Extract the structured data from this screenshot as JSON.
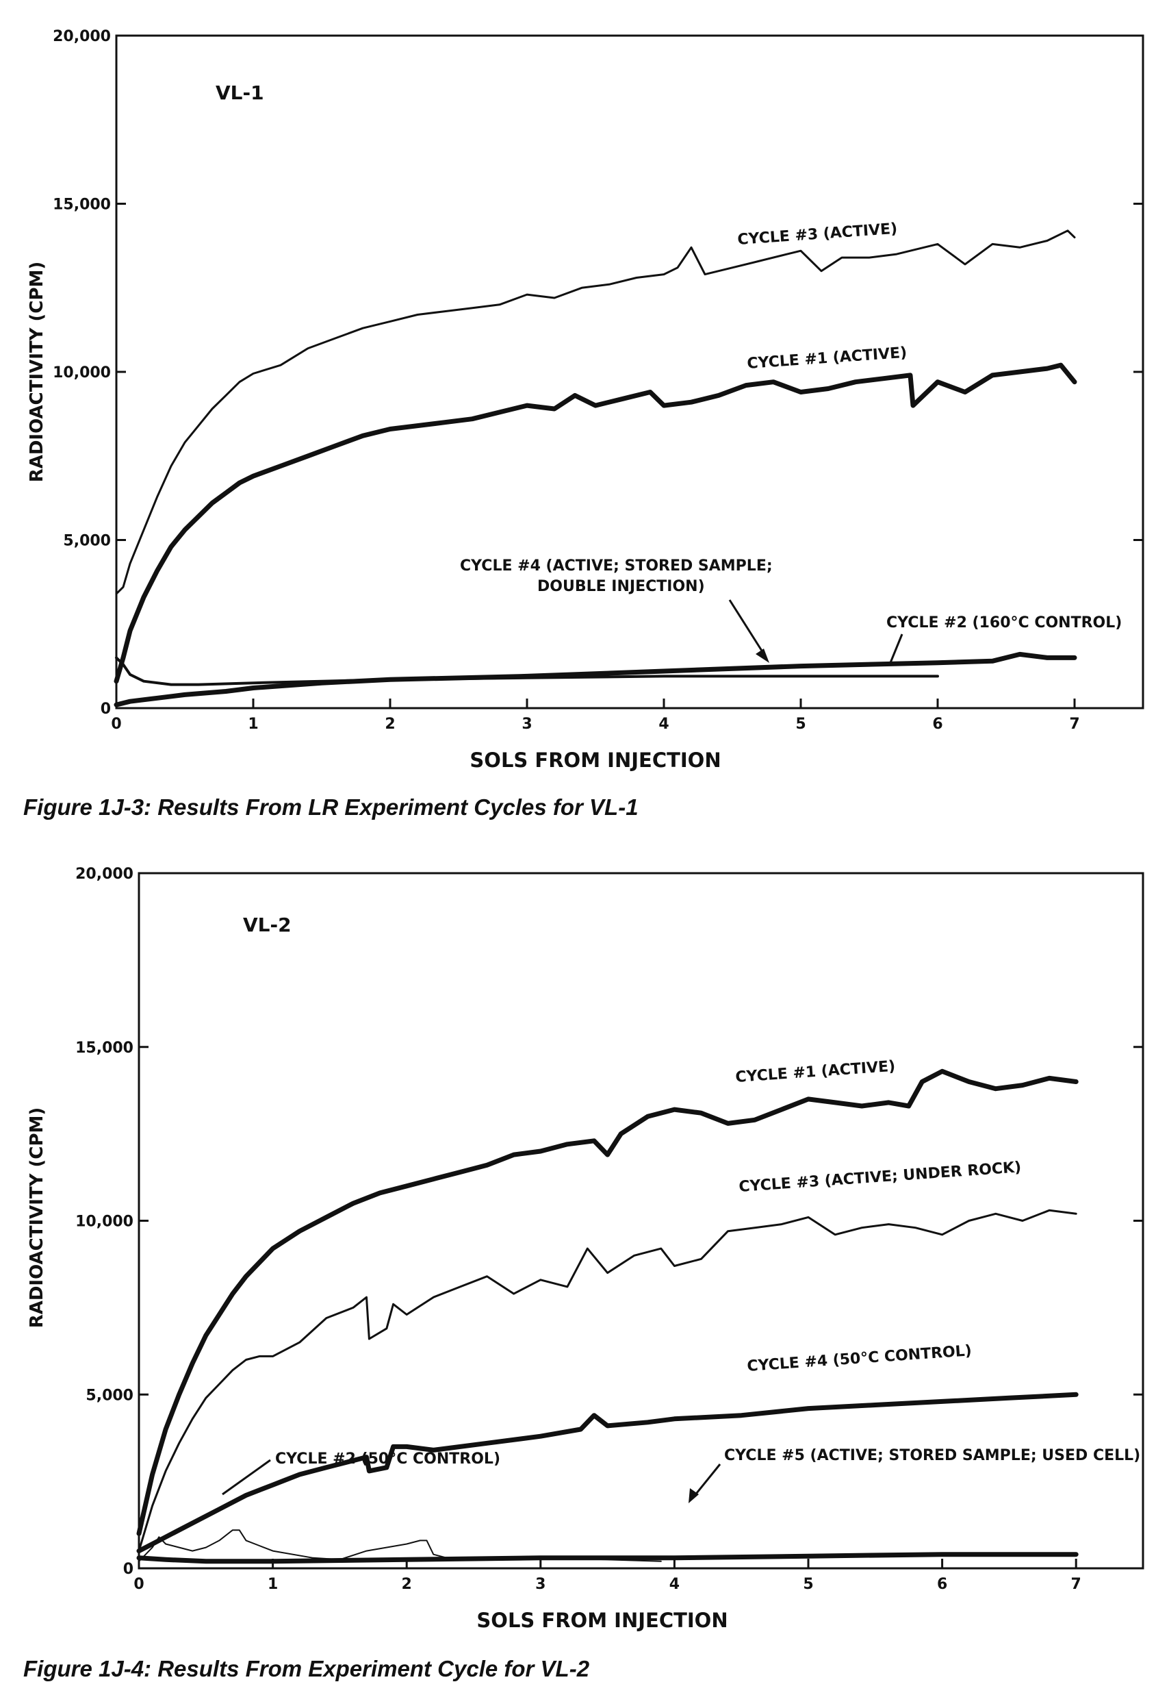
{
  "chart_data": [
    {
      "type": "line",
      "panel_label": "VL-1",
      "xlabel": "SOLS FROM INJECTION",
      "ylabel": "RADIOACTIVITY (CPM)",
      "xlim": [
        0,
        7.5
      ],
      "ylim": [
        0,
        20000
      ],
      "x_ticks": [
        0,
        1,
        2,
        3,
        4,
        5,
        6,
        7
      ],
      "y_ticks": [
        0,
        5000,
        10000,
        15000,
        20000
      ],
      "y_tick_labels": [
        "0",
        "5,000",
        "10,000",
        "15,000",
        "20,000"
      ],
      "grid": false,
      "series": [
        {
          "name": "CYCLE #3 (ACTIVE)",
          "x": [
            0,
            0.05,
            0.1,
            0.2,
            0.3,
            0.4,
            0.5,
            0.6,
            0.7,
            0.8,
            0.9,
            1.0,
            1.2,
            1.4,
            1.6,
            1.8,
            2.0,
            2.2,
            2.4,
            2.6,
            2.8,
            3.0,
            3.2,
            3.4,
            3.6,
            3.8,
            4.0,
            4.1,
            4.2,
            4.3,
            4.5,
            4.7,
            4.9,
            5.0,
            5.15,
            5.3,
            5.5,
            5.7,
            5.9,
            6.0,
            6.2,
            6.4,
            6.6,
            6.8,
            6.95,
            7.0
          ],
          "y": [
            3400,
            3600,
            4300,
            5300,
            6300,
            7200,
            7900,
            8400,
            8900,
            9300,
            9700,
            9950,
            10200,
            10700,
            11000,
            11300,
            11500,
            11700,
            11800,
            11900,
            12000,
            12300,
            12200,
            12500,
            12600,
            12800,
            12900,
            13100,
            13700,
            12900,
            13100,
            13300,
            13500,
            13600,
            13000,
            13400,
            13400,
            13500,
            13700,
            13800,
            13200,
            13800,
            13700,
            13900,
            14200,
            14000
          ],
          "line_width": 3
        },
        {
          "name": "CYCLE #1 (ACTIVE)",
          "x": [
            0,
            0.05,
            0.1,
            0.2,
            0.3,
            0.4,
            0.5,
            0.6,
            0.7,
            0.8,
            0.9,
            1.0,
            1.2,
            1.4,
            1.6,
            1.8,
            2.0,
            2.2,
            2.4,
            2.6,
            2.8,
            3.0,
            3.2,
            3.35,
            3.5,
            3.7,
            3.9,
            4.0,
            4.2,
            4.4,
            4.6,
            4.8,
            5.0,
            5.2,
            5.4,
            5.6,
            5.8,
            5.82,
            6.0,
            6.2,
            6.4,
            6.6,
            6.8,
            6.9,
            7.0
          ],
          "y": [
            800,
            1500,
            2300,
            3300,
            4100,
            4800,
            5300,
            5700,
            6100,
            6400,
            6700,
            6900,
            7200,
            7500,
            7800,
            8100,
            8300,
            8400,
            8500,
            8600,
            8800,
            9000,
            8900,
            9300,
            9000,
            9200,
            9400,
            9000,
            9100,
            9300,
            9600,
            9700,
            9400,
            9500,
            9700,
            9800,
            9900,
            9000,
            9700,
            9400,
            9900,
            10000,
            10100,
            10200,
            9700
          ],
          "line_width": 7
        },
        {
          "name": "CYCLE #4 (ACTIVE; STORED SAMPLE; DOUBLE INJECTION)",
          "x": [
            0,
            0.05,
            0.1,
            0.2,
            0.4,
            0.6,
            1.0,
            1.5,
            2.0,
            3.0,
            4.0,
            5.0,
            6.0
          ],
          "y": [
            1500,
            1300,
            1000,
            800,
            700,
            700,
            750,
            800,
            850,
            900,
            950,
            950,
            950
          ],
          "line_width": 4
        },
        {
          "name": "CYCLE #2 (160°C CONTROL)",
          "x": [
            0,
            0.1,
            0.3,
            0.5,
            0.8,
            1.0,
            1.5,
            2.0,
            3.0,
            4.0,
            5.0,
            6.0,
            6.4,
            6.6,
            6.8,
            7.0
          ],
          "y": [
            100,
            200,
            300,
            400,
            500,
            600,
            750,
            850,
            950,
            1100,
            1250,
            1350,
            1400,
            1600,
            1500,
            1500
          ],
          "line_width": 7
        }
      ]
    },
    {
      "type": "line",
      "panel_label": "VL-2",
      "xlabel": "SOLS FROM INJECTION",
      "ylabel": "RADIOACTIVITY (CPM)",
      "xlim": [
        0,
        7.5
      ],
      "ylim": [
        0,
        20000
      ],
      "x_ticks": [
        0,
        1,
        2,
        3,
        4,
        5,
        6,
        7
      ],
      "y_ticks": [
        0,
        5000,
        10000,
        15000,
        20000
      ],
      "y_tick_labels": [
        "0",
        "5,000",
        "10,000",
        "15,000",
        "20,000"
      ],
      "grid": false,
      "series": [
        {
          "name": "CYCLE #1 (ACTIVE)",
          "x": [
            0,
            0.1,
            0.2,
            0.3,
            0.4,
            0.5,
            0.6,
            0.7,
            0.8,
            0.9,
            1.0,
            1.2,
            1.4,
            1.6,
            1.8,
            2.0,
            2.2,
            2.4,
            2.6,
            2.8,
            3.0,
            3.2,
            3.4,
            3.5,
            3.6,
            3.8,
            4.0,
            4.2,
            4.4,
            4.6,
            4.8,
            5.0,
            5.2,
            5.4,
            5.6,
            5.75,
            5.85,
            6.0,
            6.2,
            6.4,
            6.6,
            6.8,
            7.0
          ],
          "y": [
            1000,
            2700,
            4000,
            5000,
            5900,
            6700,
            7300,
            7900,
            8400,
            8800,
            9200,
            9700,
            10100,
            10500,
            10800,
            11000,
            11200,
            11400,
            11600,
            11900,
            12000,
            12200,
            12300,
            11900,
            12500,
            13000,
            13200,
            13100,
            12800,
            12900,
            13200,
            13500,
            13400,
            13300,
            13400,
            13300,
            14000,
            14300,
            14000,
            13800,
            13900,
            14100,
            14000
          ],
          "line_width": 7
        },
        {
          "name": "CYCLE #3 (ACTIVE; UNDER ROCK)",
          "x": [
            0,
            0.1,
            0.2,
            0.3,
            0.4,
            0.5,
            0.6,
            0.7,
            0.8,
            0.9,
            1.0,
            1.2,
            1.4,
            1.6,
            1.7,
            1.72,
            1.85,
            1.9,
            2.0,
            2.2,
            2.4,
            2.6,
            2.8,
            3.0,
            3.2,
            3.35,
            3.5,
            3.7,
            3.9,
            4.0,
            4.2,
            4.4,
            4.6,
            4.8,
            5.0,
            5.2,
            5.4,
            5.6,
            5.8,
            6.0,
            6.2,
            6.4,
            6.6,
            6.8,
            7.0
          ],
          "y": [
            500,
            1800,
            2800,
            3600,
            4300,
            4900,
            5300,
            5700,
            6000,
            6100,
            6100,
            6500,
            7200,
            7500,
            7800,
            6600,
            6900,
            7600,
            7300,
            7800,
            8100,
            8400,
            7900,
            8300,
            8100,
            9200,
            8500,
            9000,
            9200,
            8700,
            8900,
            9700,
            9800,
            9900,
            10100,
            9600,
            9800,
            9900,
            9800,
            9600,
            10000,
            10200,
            10000,
            10300,
            10200
          ],
          "line_width": 3
        },
        {
          "name": "CYCLE #4 (50°C CONTROL)",
          "x": [
            0,
            0.1,
            0.2,
            0.4,
            0.6,
            0.8,
            1.0,
            1.2,
            1.4,
            1.6,
            1.7,
            1.72,
            1.85,
            1.9,
            2.0,
            2.2,
            2.6,
            3.0,
            3.3,
            3.4,
            3.5,
            3.8,
            4.0,
            4.5,
            5.0,
            5.5,
            6.0,
            6.5,
            7.0
          ],
          "y": [
            500,
            700,
            900,
            1300,
            1700,
            2100,
            2400,
            2700,
            2900,
            3100,
            3200,
            2800,
            2900,
            3500,
            3500,
            3400,
            3600,
            3800,
            4000,
            4400,
            4100,
            4200,
            4300,
            4400,
            4600,
            4700,
            4800,
            4900,
            5000
          ],
          "line_width": 7
        },
        {
          "name": "CYCLE #2 (50°C CONTROL)",
          "x": [
            0,
            0.1,
            0.15,
            0.2,
            0.4,
            0.5,
            0.6,
            0.7,
            0.75,
            0.8,
            0.9,
            1.0,
            1.3,
            1.5,
            1.7,
            2.0,
            2.1,
            2.15,
            2.2,
            2.3,
            2.5,
            2.8,
            3.0,
            3.5,
            3.9
          ],
          "y": [
            200,
            600,
            900,
            700,
            500,
            600,
            800,
            1100,
            1100,
            800,
            650,
            500,
            300,
            250,
            500,
            700,
            800,
            800,
            400,
            300,
            300,
            300,
            300,
            250,
            200
          ],
          "line_width": 2
        },
        {
          "name": "CYCLE #5 (ACTIVE; STORED SAMPLE; USED CELL)",
          "x": [
            0,
            0.2,
            0.5,
            1.0,
            2.0,
            3.0,
            4.0,
            5.0,
            6.0,
            7.0
          ],
          "y": [
            300,
            250,
            200,
            200,
            250,
            300,
            300,
            350,
            400,
            400
          ],
          "line_width": 7
        }
      ]
    }
  ],
  "figure1": {
    "panel_label": "VL-1",
    "xlabel": "SOLS FROM INJECTION",
    "ylabel": "RADIOACTIVITY (CPM)",
    "caption": "Figure 1J-3:  Results From LR Experiment Cycles for VL-1",
    "labels": {
      "cycle3": "CYCLE #3 (ACTIVE)",
      "cycle1": "CYCLE #1 (ACTIVE)",
      "cycle4_line1": "CYCLE #4 (ACTIVE; STORED SAMPLE;",
      "cycle4_line2": "DOUBLE INJECTION)",
      "cycle2": "CYCLE #2 (160°C CONTROL)"
    }
  },
  "figure2": {
    "panel_label": "VL-2",
    "xlabel": "SOLS FROM INJECTION",
    "ylabel": "RADIOACTIVITY (CPM)",
    "caption": "Figure 1J-4:  Results From Experiment Cycle for VL-2",
    "labels": {
      "cycle1": "CYCLE #1 (ACTIVE)",
      "cycle3": "CYCLE #3 (ACTIVE; UNDER ROCK)",
      "cycle4": "CYCLE #4 (50°C CONTROL)",
      "cycle2": "CYCLE #2 (50°C CONTROL)",
      "cycle5": "CYCLE #5 (ACTIVE; STORED SAMPLE; USED CELL)"
    }
  }
}
